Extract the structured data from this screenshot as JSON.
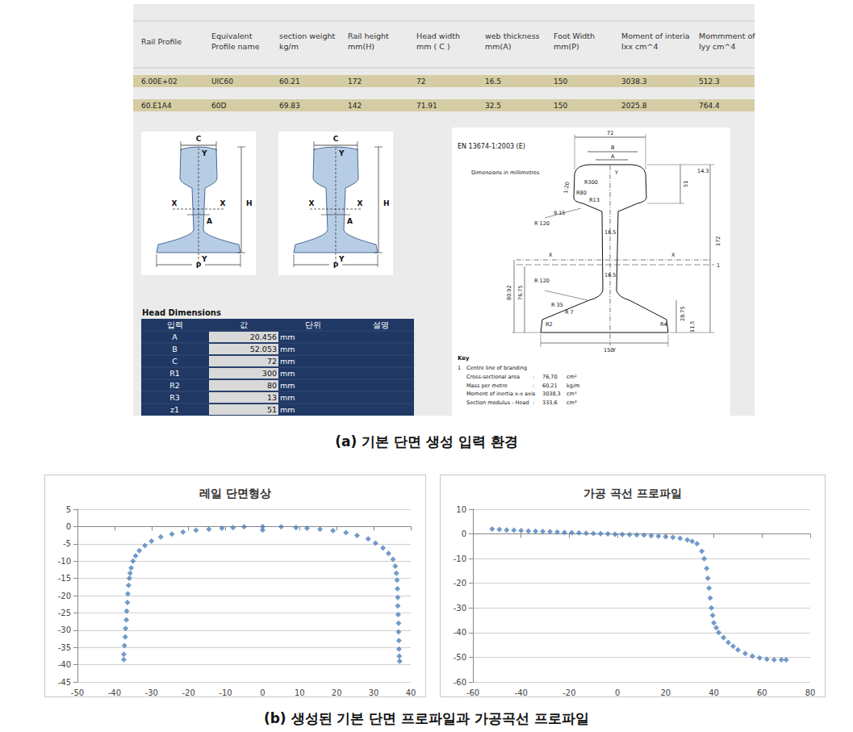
{
  "panel_a": {
    "table": {
      "header": [
        [
          "Rail Profile"
        ],
        [
          "Equivalent",
          " Profile name"
        ],
        [
          "section weight",
          "kg/m"
        ],
        [
          "Rail height",
          "mm(H)"
        ],
        [
          "Head width",
          "mm ( C )"
        ],
        [
          "web thickness",
          "mm(A)"
        ],
        [
          "Foot Width",
          "mm(P)"
        ],
        [
          "Moment of interia",
          "Ixx cm^4"
        ],
        [
          "Mommment of",
          "Iyy cm^4"
        ]
      ],
      "rows": [
        [
          "6.00E+02",
          "UIC60",
          "60.21",
          "172",
          "72",
          "16.5",
          "150",
          "3038.3",
          "512.3"
        ],
        [
          "60.E1A4",
          "60D",
          "69.83",
          "142",
          "71.91",
          "32.5",
          "150",
          "2025.8",
          "764.4"
        ]
      ]
    },
    "diagrams": [
      {
        "labels": [
          "C",
          "Y",
          "X",
          "X",
          "A",
          "H",
          "Y",
          "P"
        ]
      },
      {
        "labels": [
          "C",
          "Y",
          "X",
          "X",
          "A",
          "H",
          "Y",
          "P"
        ]
      }
    ],
    "head_dimensions": {
      "title": "Head Dimensions",
      "header": [
        "입력",
        "값",
        "단위",
        "설명"
      ],
      "rows": [
        [
          "A",
          "20.456",
          "mm"
        ],
        [
          "B",
          "52.053",
          "mm"
        ],
        [
          "C",
          "72",
          "mm"
        ],
        [
          "R1",
          "300",
          "mm"
        ],
        [
          "R2",
          "80",
          "mm"
        ],
        [
          "R3",
          "13",
          "mm"
        ],
        [
          "z1",
          "51",
          "mm"
        ]
      ]
    },
    "drawing": {
      "standard": "EN 13674-1:2003 (E)",
      "note": "Dimensions in millimetres",
      "labels": [
        "72",
        "B",
        "A",
        "Y",
        "14.3",
        "51",
        "R300",
        "R80",
        "R13",
        "1:20",
        "9.15",
        "R 120",
        "16.5",
        "X",
        "X",
        "1",
        "172",
        "R 120",
        "16.5",
        "80.92",
        "76.75",
        "28.75",
        "R 35",
        "R 7",
        "R2",
        "R4",
        "11.5",
        "Y",
        "150"
      ],
      "key": {
        "title": "Key",
        "items": [
          [
            "1",
            "Centre line of branding"
          ]
        ],
        "properties": [
          [
            "Cross-sectional area",
            ":",
            "76,70",
            "cm²"
          ],
          [
            "Mass per metre",
            ":",
            "60,21",
            "kg/m"
          ],
          [
            "Moment of inertia x-x axis",
            ":",
            "3038,3",
            "cm⁴"
          ],
          [
            "Section modulus - Head",
            ":",
            "333,6",
            "cm³"
          ]
        ]
      }
    }
  },
  "captions": {
    "a": "(a) 기본 단면 생성 입력 환경",
    "b": "(b) 생성된 기본 단면 프로파일과 가공곡선 프로파일"
  },
  "chart_data": [
    {
      "type": "scatter",
      "title": "레일 단면형상",
      "x": [
        -37.5,
        -37.5,
        -37.3,
        -37.1,
        -37,
        -36.8,
        -36.7,
        -36.5,
        -36.4,
        -36.2,
        -36,
        -35.8,
        -35.5,
        -35,
        -34.3,
        -33.3,
        -31.8,
        -30,
        -27.5,
        -24.5,
        -21.5,
        -18,
        -14.5,
        -11,
        -8,
        -5,
        0,
        0,
        5,
        9,
        12,
        15.5,
        19,
        22.5,
        25.5,
        28.5,
        30.5,
        32.5,
        34,
        35.2,
        35.8,
        36.1,
        36.3,
        36.4,
        36.5,
        36.5,
        36.6,
        36.7,
        36.7,
        36.8,
        36.8,
        36.9,
        37
      ],
      "values": [
        -38.5,
        -37,
        -34.5,
        -32,
        -29.5,
        -27,
        -24.5,
        -22,
        -19.5,
        -17,
        -15,
        -13.5,
        -12,
        -10,
        -8.5,
        -7,
        -5.5,
        -4.2,
        -3,
        -2.2,
        -1.6,
        -1.1,
        -0.8,
        -0.5,
        -0.3,
        -0.1,
        0,
        -1,
        -0.1,
        -0.3,
        -0.5,
        -0.8,
        -1.2,
        -1.8,
        -2.6,
        -3.6,
        -4.8,
        -6.2,
        -7.8,
        -9.5,
        -11.5,
        -13.5,
        -15.5,
        -18,
        -20.5,
        -23,
        -25.5,
        -28,
        -30.5,
        -33,
        -35.5,
        -37.5,
        -39
      ],
      "xlim": [
        -50,
        40
      ],
      "ylim": [
        -45,
        5
      ],
      "xticks": [
        -50,
        -40,
        -30,
        -20,
        -10,
        0,
        10,
        20,
        30,
        40
      ],
      "yticks": [
        -45,
        -40,
        -35,
        -30,
        -25,
        -20,
        -15,
        -10,
        -5,
        0,
        5
      ],
      "grid": true,
      "color": "#4f81bd",
      "marker": "diamond"
    },
    {
      "type": "scatter",
      "title": "가공 곡선 프로파일",
      "x": [
        -52,
        -49,
        -46,
        -43,
        -40,
        -37,
        -34,
        -31,
        -28,
        -25,
        -22,
        -19,
        -16,
        -13,
        -10,
        -7,
        -4,
        -1,
        2,
        5,
        8,
        11,
        14,
        17,
        20,
        23,
        26,
        29,
        31,
        33,
        35,
        36,
        37,
        37.5,
        38,
        38.5,
        39,
        39.5,
        40,
        41,
        42,
        44,
        46,
        48,
        50,
        53,
        56,
        59,
        62,
        65,
        68,
        70
      ],
      "values": [
        2,
        1.8,
        1.6,
        1.5,
        1.3,
        1.2,
        1.1,
        1,
        0.9,
        0.8,
        0.6,
        0.5,
        0.4,
        0.3,
        0.2,
        0.1,
        0,
        -0.1,
        -0.2,
        -0.3,
        -0.4,
        -0.5,
        -0.7,
        -0.9,
        -1.1,
        -1.4,
        -1.8,
        -2.4,
        -3,
        -4,
        -7,
        -10,
        -14,
        -18,
        -22,
        -26,
        -30,
        -33,
        -36,
        -38,
        -40,
        -42,
        -44,
        -45.5,
        -47,
        -48.5,
        -49.5,
        -50.3,
        -50.8,
        -51,
        -51,
        -51
      ],
      "xlim": [
        -60,
        80
      ],
      "ylim": [
        -60,
        10
      ],
      "xticks": [
        -60,
        -40,
        -20,
        0,
        20,
        40,
        60,
        80
      ],
      "yticks": [
        -60,
        -50,
        -40,
        -30,
        -20,
        -10,
        0,
        10
      ],
      "grid": true,
      "color": "#4f81bd",
      "marker": "diamond"
    }
  ]
}
